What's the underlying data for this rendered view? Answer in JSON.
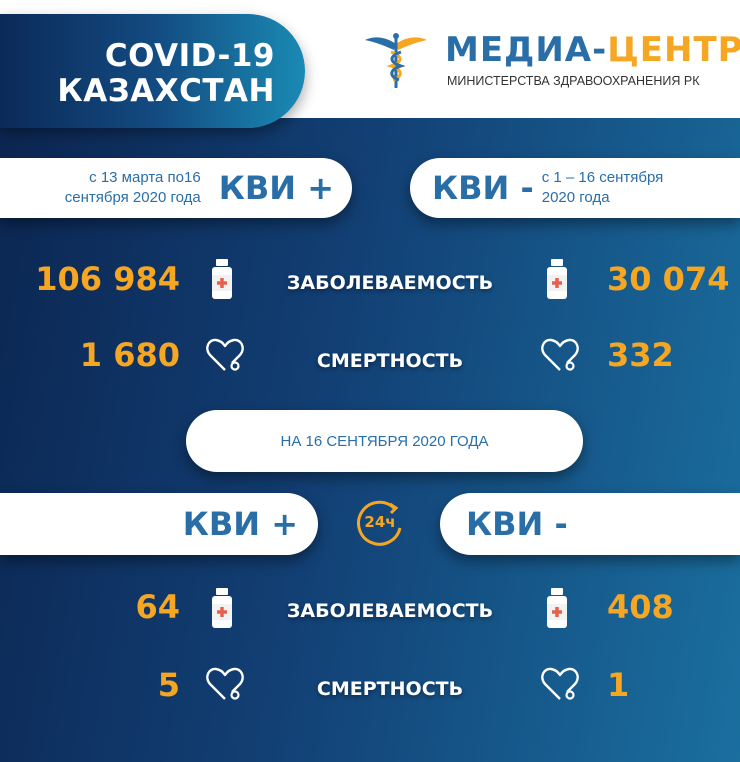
{
  "header": {
    "title_line1": "COVID-19",
    "title_line2": "КАЗАХСТАН",
    "logo": {
      "name_part1": "МЕДИА-",
      "name_part2": "ЦЕНТР",
      "subtitle": "МИНИСТЕРСТВА ЗДРАВООХРАНЕНИЯ РК"
    }
  },
  "cumulative": {
    "left": {
      "period_line1": "с 13 марта по16",
      "period_line2": "сентября 2020 года",
      "label": "КВИ +"
    },
    "right": {
      "label": "КВИ -",
      "period_line1": "с 1 – 16 сентября",
      "period_line2": "2020 года"
    },
    "incidence": {
      "label": "ЗАБОЛЕВАЕМОСТЬ",
      "left": "106 984",
      "right": "30 074"
    },
    "mortality": {
      "label": "СМЕРТНОСТЬ",
      "left": "1 680",
      "right": "332"
    }
  },
  "daily": {
    "date_label": "НА 16 СЕНТЯБРЯ 2020 ГОДА",
    "left_label": "КВИ +",
    "right_label": "КВИ -",
    "badge": "24ч",
    "incidence": {
      "label": "ЗАБОЛЕВАЕМОСТЬ",
      "left": "64",
      "right": "408"
    },
    "mortality": {
      "label": "СМЕРТНОСТЬ",
      "left": "5",
      "right": "1"
    }
  },
  "colors": {
    "accent": "#f5a623",
    "blue": "#2a6ea8",
    "navy": "#0b2550"
  }
}
